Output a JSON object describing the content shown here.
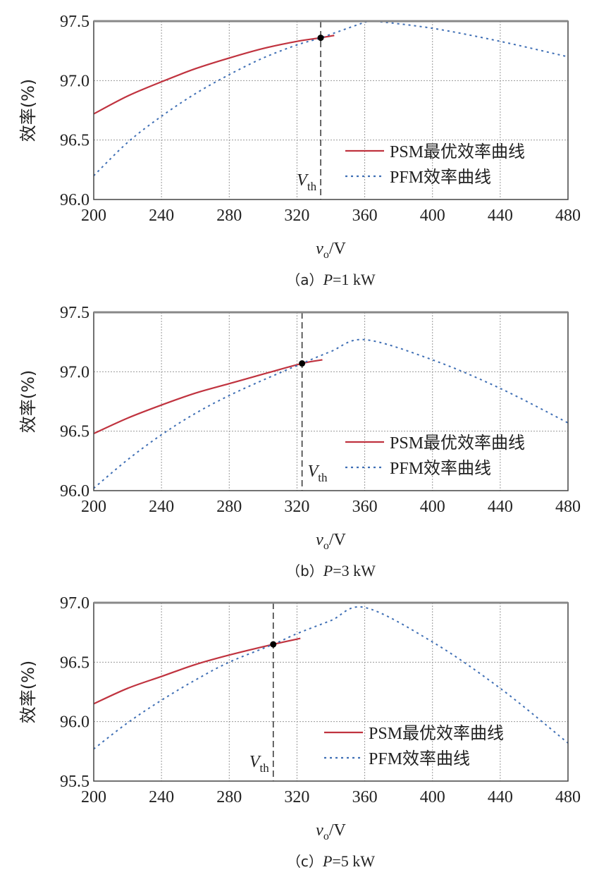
{
  "chart_data": [
    {
      "type": "line",
      "caption": {
        "prefix": "（a）",
        "var": "P",
        "rest": "=1 kW"
      },
      "xlabel": {
        "var": "v",
        "sub": "o",
        "unit": "/V"
      },
      "ylabel": "效率(%)",
      "xlim": [
        200,
        480
      ],
      "ylim": [
        96.0,
        97.5
      ],
      "xticks": [
        "200",
        "240",
        "280",
        "320",
        "360",
        "400",
        "440",
        "480"
      ],
      "yticks": [
        "96.0",
        "96.5",
        "97.0",
        "97.5"
      ],
      "grid": true,
      "legend_placement": "bottom-right",
      "vth": {
        "label": "V",
        "sub": "th",
        "x": 334,
        "y": 97.36
      },
      "series": [
        {
          "name": "PSM最优效率曲线",
          "style": "solid",
          "color": "#c0333f",
          "x": [
            200,
            220,
            240,
            260,
            280,
            300,
            320,
            334,
            342
          ],
          "y": [
            96.72,
            96.87,
            96.99,
            97.1,
            97.19,
            97.27,
            97.33,
            97.36,
            97.38
          ]
        },
        {
          "name": "PFM效率曲线",
          "style": "dotted",
          "color": "#3f6fb5",
          "x": [
            200,
            220,
            240,
            260,
            280,
            300,
            320,
            334,
            360,
            365,
            400,
            440,
            480
          ],
          "y": [
            96.2,
            96.48,
            96.7,
            96.89,
            97.05,
            97.19,
            97.3,
            97.36,
            97.49,
            97.5,
            97.44,
            97.33,
            97.2
          ]
        }
      ]
    },
    {
      "type": "line",
      "caption": {
        "prefix": "（b）",
        "var": "P",
        "rest": "=3 kW"
      },
      "xlabel": {
        "var": "v",
        "sub": "o",
        "unit": "/V"
      },
      "ylabel": "效率(%)",
      "xlim": [
        200,
        480
      ],
      "ylim": [
        96.0,
        97.5
      ],
      "xticks": [
        "200",
        "240",
        "280",
        "320",
        "360",
        "400",
        "440",
        "480"
      ],
      "yticks": [
        "96.0",
        "96.5",
        "97.0",
        "97.5"
      ],
      "grid": true,
      "legend_placement": "bottom-right",
      "vth": {
        "label": "V",
        "sub": "th",
        "x": 323,
        "y": 97.07
      },
      "series": [
        {
          "name": "PSM最优效率曲线",
          "style": "solid",
          "color": "#c0333f",
          "x": [
            200,
            220,
            240,
            260,
            280,
            300,
            323,
            335
          ],
          "y": [
            96.48,
            96.61,
            96.72,
            96.82,
            96.9,
            96.98,
            97.07,
            97.1
          ]
        },
        {
          "name": "PFM效率曲线",
          "style": "dotted",
          "color": "#3f6fb5",
          "x": [
            200,
            220,
            240,
            260,
            280,
            300,
            323,
            340,
            360,
            400,
            440,
            480
          ],
          "y": [
            96.02,
            96.26,
            96.47,
            96.65,
            96.8,
            96.93,
            97.07,
            97.17,
            97.27,
            97.1,
            96.86,
            96.57
          ]
        }
      ]
    },
    {
      "type": "line",
      "caption": {
        "prefix": "（c）",
        "var": "P",
        "rest": "=5 kW"
      },
      "xlabel": {
        "var": "v",
        "sub": "o",
        "unit": "/V"
      },
      "ylabel": "效率(%)",
      "xlim": [
        200,
        480
      ],
      "ylim": [
        95.5,
        97.0
      ],
      "xticks": [
        "200",
        "240",
        "280",
        "320",
        "360",
        "400",
        "440",
        "480"
      ],
      "yticks": [
        "95.5",
        "96.0",
        "96.5",
        "97.0"
      ],
      "grid": true,
      "legend_placement": "bottom-right",
      "vth": {
        "label": "V",
        "sub": "th",
        "x": 306,
        "y": 96.65
      },
      "series": [
        {
          "name": "PSM最优效率曲线",
          "style": "solid",
          "color": "#c0333f",
          "x": [
            200,
            220,
            240,
            260,
            280,
            306,
            322
          ],
          "y": [
            96.15,
            96.28,
            96.38,
            96.48,
            96.56,
            96.65,
            96.7
          ]
        },
        {
          "name": "PFM效率曲线",
          "style": "dotted",
          "color": "#3f6fb5",
          "x": [
            200,
            220,
            240,
            260,
            280,
            306,
            320,
            340,
            360,
            400,
            440,
            480
          ],
          "y": [
            95.77,
            95.99,
            96.18,
            96.35,
            96.5,
            96.65,
            96.74,
            96.85,
            96.96,
            96.67,
            96.28,
            95.82
          ]
        }
      ]
    }
  ]
}
